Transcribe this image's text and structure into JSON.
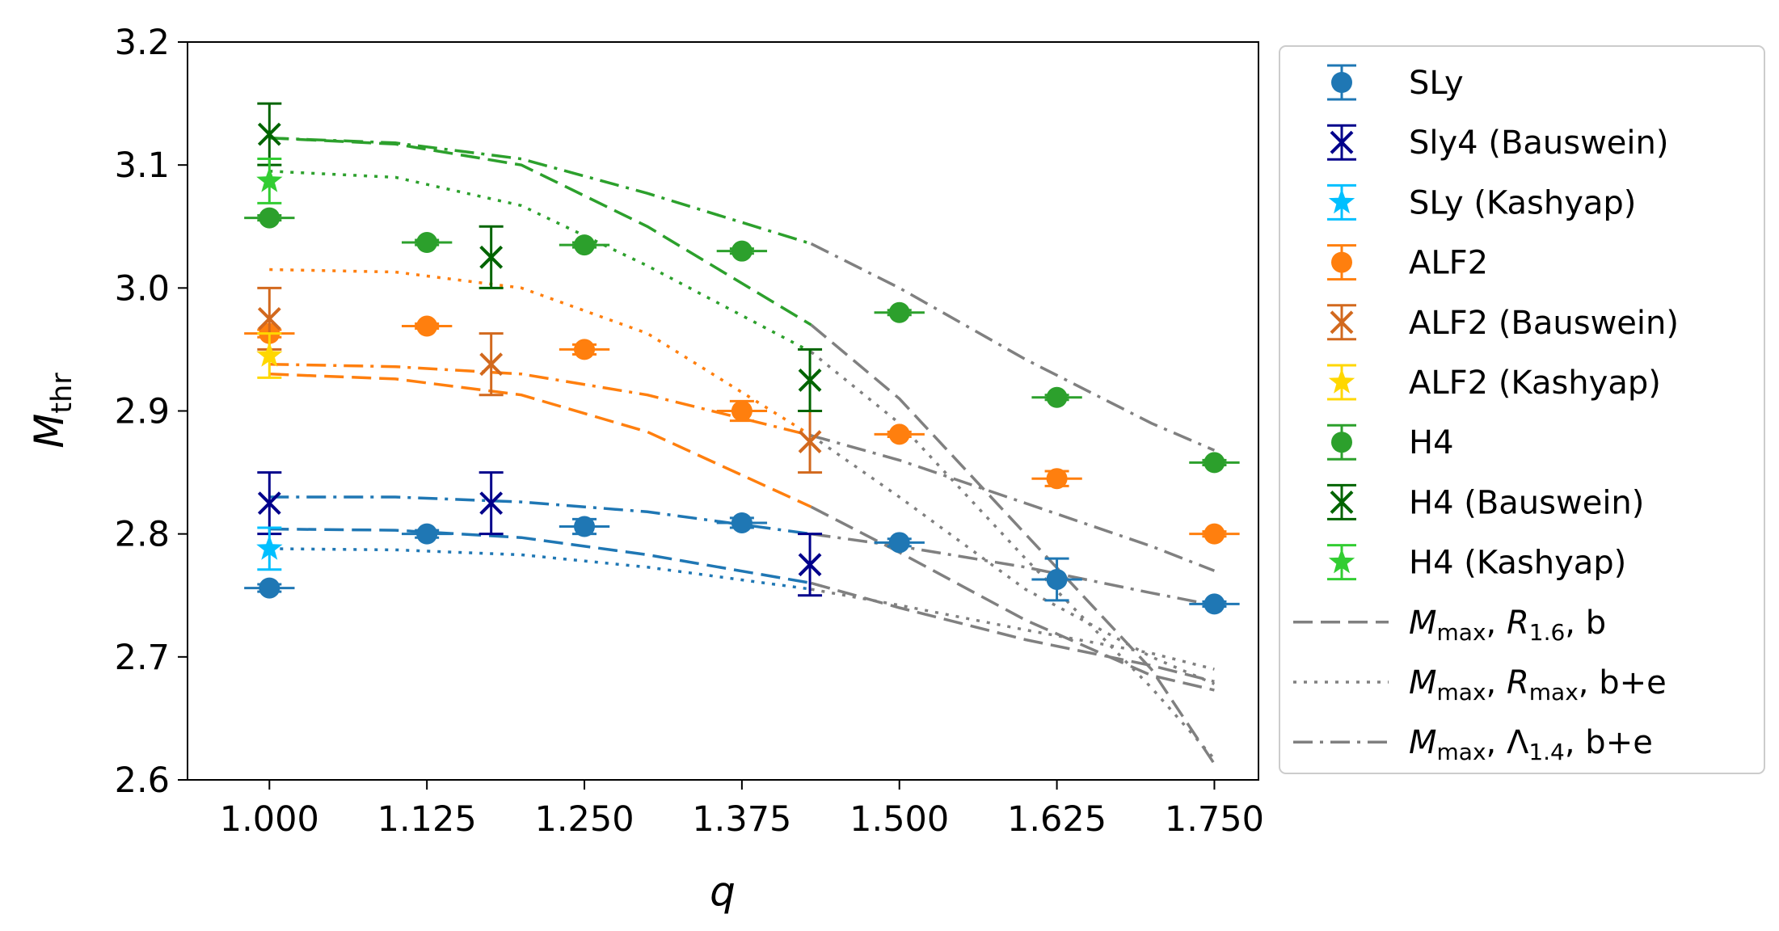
{
  "chart_data": {
    "type": "scatter",
    "xlabel": "q",
    "ylabel": "M",
    "ylabel_sub": "thr",
    "xlim": [
      0.935,
      1.785
    ],
    "ylim": [
      2.6,
      3.2
    ],
    "xticks": [
      "1.000",
      "1.125",
      "1.250",
      "1.375",
      "1.500",
      "1.625",
      "1.750"
    ],
    "yticks": [
      "2.6",
      "2.7",
      "2.8",
      "2.9",
      "3.0",
      "3.1",
      "3.2"
    ],
    "colors": {
      "sly": "#1f77b4",
      "sly4_bauswein": "#00008b",
      "sly_kashyap": "#00bfff",
      "alf2": "#ff7f0e",
      "alf2_bauswein": "#d2691e",
      "alf2_kashyap": "#ffd700",
      "h4": "#2ca02c",
      "h4_bauswein": "#006400",
      "h4_kashyap": "#32cd32",
      "fit": "#808080"
    },
    "points": [
      {
        "name": "SLy",
        "color": "#1f77b4",
        "marker": "circle",
        "x": [
          1.0,
          1.125,
          1.25,
          1.375,
          1.5,
          1.625,
          1.75
        ],
        "y": [
          2.756,
          2.8,
          2.806,
          2.809,
          2.793,
          2.763,
          2.743
        ],
        "yerr": [
          0.003,
          0.003,
          0.006,
          0.004,
          0.003,
          0.017,
          0.002
        ],
        "xerr": [
          0.02,
          0.02,
          0.02,
          0.02,
          0.02,
          0.02,
          0.02
        ]
      },
      {
        "name": "Sly4 (Bauswein)",
        "color": "#00008b",
        "marker": "x",
        "x": [
          1.0,
          1.176,
          1.429
        ],
        "y": [
          2.825,
          2.825,
          2.775
        ],
        "yerr": [
          0.025,
          0.025,
          0.025
        ],
        "xerr": [
          0,
          0,
          0
        ]
      },
      {
        "name": "SLy (Kashyap)",
        "color": "#00bfff",
        "marker": "star",
        "x": [
          1.0
        ],
        "y": [
          2.788
        ],
        "yerr": [
          0.017
        ],
        "xerr": [
          0
        ]
      },
      {
        "name": "ALF2",
        "color": "#ff7f0e",
        "marker": "circle",
        "x": [
          1.0,
          1.125,
          1.25,
          1.375,
          1.5,
          1.625,
          1.75
        ],
        "y": [
          2.963,
          2.969,
          2.95,
          2.9,
          2.881,
          2.845,
          2.8
        ],
        "yerr": [
          0.003,
          0.002,
          0.004,
          0.008,
          0.002,
          0.006,
          0.002
        ],
        "xerr": [
          0.02,
          0.02,
          0.02,
          0.02,
          0.02,
          0.02,
          0.02
        ]
      },
      {
        "name": "ALF2 (Bauswein)",
        "color": "#d2691e",
        "marker": "x",
        "x": [
          1.0,
          1.176,
          1.429
        ],
        "y": [
          2.975,
          2.938,
          2.875
        ],
        "yerr": [
          0.025,
          0.025,
          0.025
        ],
        "xerr": [
          0,
          0,
          0
        ]
      },
      {
        "name": "ALF2 (Kashyap)",
        "color": "#ffd700",
        "marker": "star",
        "x": [
          1.0
        ],
        "y": [
          2.945
        ],
        "yerr": [
          0.018
        ],
        "xerr": [
          0
        ]
      },
      {
        "name": "H4",
        "color": "#2ca02c",
        "marker": "circle",
        "x": [
          1.0,
          1.125,
          1.25,
          1.375,
          1.5,
          1.625,
          1.75
        ],
        "y": [
          3.057,
          3.037,
          3.035,
          3.03,
          2.98,
          2.911,
          2.858
        ],
        "yerr": [
          0.002,
          0.002,
          0.002,
          0.002,
          0.002,
          0.002,
          0.002
        ],
        "xerr": [
          0.02,
          0.02,
          0.02,
          0.02,
          0.02,
          0.02,
          0.02
        ]
      },
      {
        "name": "H4 (Bauswein)",
        "color": "#006400",
        "marker": "x",
        "x": [
          1.0,
          1.176,
          1.429
        ],
        "y": [
          3.125,
          3.025,
          2.925
        ],
        "yerr": [
          0.025,
          0.025,
          0.025
        ],
        "xerr": [
          0,
          0,
          0
        ]
      },
      {
        "name": "H4 (Kashyap)",
        "color": "#32cd32",
        "marker": "star",
        "x": [
          1.0
        ],
        "y": [
          3.087
        ],
        "yerr": [
          0.018
        ],
        "xerr": [
          0
        ]
      }
    ],
    "curves": [
      {
        "eos": "SLy",
        "color": "#1f77b4",
        "style": "dashed",
        "x": [
          1.0,
          1.1,
          1.2,
          1.3,
          1.43,
          1.5,
          1.6,
          1.7,
          1.75
        ],
        "y": [
          2.804,
          2.803,
          2.797,
          2.783,
          2.76,
          2.74,
          2.714,
          2.693,
          2.68
        ]
      },
      {
        "eos": "SLy",
        "color": "#1f77b4",
        "style": "dotted",
        "x": [
          1.0,
          1.1,
          1.2,
          1.3,
          1.43,
          1.5,
          1.6,
          1.7,
          1.75
        ],
        "y": [
          2.788,
          2.787,
          2.783,
          2.773,
          2.755,
          2.742,
          2.722,
          2.703,
          2.69
        ]
      },
      {
        "eos": "SLy",
        "color": "#1f77b4",
        "style": "dashdot",
        "x": [
          1.0,
          1.1,
          1.2,
          1.3,
          1.43,
          1.5,
          1.6,
          1.7,
          1.75
        ],
        "y": [
          2.83,
          2.83,
          2.826,
          2.818,
          2.8,
          2.79,
          2.773,
          2.752,
          2.742
        ]
      },
      {
        "eos": "ALF2",
        "color": "#ff7f0e",
        "style": "dashed",
        "x": [
          1.0,
          1.1,
          1.2,
          1.3,
          1.43,
          1.5,
          1.6,
          1.7,
          1.75
        ],
        "y": [
          2.93,
          2.926,
          2.913,
          2.883,
          2.822,
          2.785,
          2.73,
          2.685,
          2.673
        ]
      },
      {
        "eos": "ALF2",
        "color": "#ff7f0e",
        "style": "dotted",
        "x": [
          1.0,
          1.1,
          1.2,
          1.3,
          1.43,
          1.5,
          1.6,
          1.7,
          1.75
        ],
        "y": [
          3.015,
          3.013,
          3.0,
          2.963,
          2.88,
          2.83,
          2.755,
          2.7,
          2.678
        ]
      },
      {
        "eos": "ALF2",
        "color": "#ff7f0e",
        "style": "dashdot",
        "x": [
          1.0,
          1.1,
          1.2,
          1.3,
          1.43,
          1.5,
          1.6,
          1.7,
          1.75
        ],
        "y": [
          2.938,
          2.936,
          2.93,
          2.913,
          2.88,
          2.86,
          2.825,
          2.79,
          2.77
        ]
      },
      {
        "eos": "H4",
        "color": "#2ca02c",
        "style": "dashed",
        "x": [
          1.0,
          1.1,
          1.2,
          1.3,
          1.43,
          1.5,
          1.6,
          1.7,
          1.75
        ],
        "y": [
          3.122,
          3.117,
          3.1,
          3.05,
          2.97,
          2.91,
          2.8,
          2.69,
          2.613
        ]
      },
      {
        "eos": "H4",
        "color": "#2ca02c",
        "style": "dotted",
        "x": [
          1.0,
          1.1,
          1.2,
          1.3,
          1.43,
          1.5,
          1.6,
          1.7,
          1.75
        ],
        "y": [
          3.095,
          3.09,
          3.067,
          3.018,
          2.948,
          2.89,
          2.78,
          2.675,
          2.617
        ]
      },
      {
        "eos": "H4",
        "color": "#2ca02c",
        "style": "dashdot",
        "x": [
          1.0,
          1.1,
          1.2,
          1.3,
          1.43,
          1.5,
          1.6,
          1.7,
          1.75
        ],
        "y": [
          3.122,
          3.118,
          3.105,
          3.077,
          3.036,
          3.0,
          2.942,
          2.89,
          2.868
        ]
      }
    ],
    "colored_until": 1.43,
    "legend": [
      {
        "label": "SLy",
        "kind": "point",
        "color": "#1f77b4",
        "marker": "circle"
      },
      {
        "label": "Sly4 (Bauswein)",
        "kind": "point",
        "color": "#00008b",
        "marker": "x"
      },
      {
        "label": "SLy (Kashyap)",
        "kind": "point",
        "color": "#00bfff",
        "marker": "star"
      },
      {
        "label": "ALF2",
        "kind": "point",
        "color": "#ff7f0e",
        "marker": "circle"
      },
      {
        "label": "ALF2 (Bauswein)",
        "kind": "point",
        "color": "#d2691e",
        "marker": "x"
      },
      {
        "label": "ALF2 (Kashyap)",
        "kind": "point",
        "color": "#ffd700",
        "marker": "star"
      },
      {
        "label": "H4",
        "kind": "point",
        "color": "#2ca02c",
        "marker": "circle"
      },
      {
        "label": "H4 (Bauswein)",
        "kind": "point",
        "color": "#006400",
        "marker": "x"
      },
      {
        "label": "H4 (Kashyap)",
        "kind": "point",
        "color": "#32cd32",
        "marker": "star"
      },
      {
        "label": "Mmax, R1.6, b",
        "kind": "line",
        "style": "dashed",
        "color": "#808080",
        "m": "M",
        "msub": "max",
        "v": "R",
        "vsub": "1.6",
        "tail": ", b"
      },
      {
        "label": "Mmax, Rmax, b+e",
        "kind": "line",
        "style": "dotted",
        "color": "#808080",
        "m": "M",
        "msub": "max",
        "v": "R",
        "vsub": "max",
        "tail": ", b+e"
      },
      {
        "label": "Mmax, Λ1.4, b+e",
        "kind": "line",
        "style": "dashdot",
        "color": "#808080",
        "m": "M",
        "msub": "max",
        "v": "Λ",
        "vsub": "1.4",
        "tail": ", b+e"
      }
    ]
  }
}
